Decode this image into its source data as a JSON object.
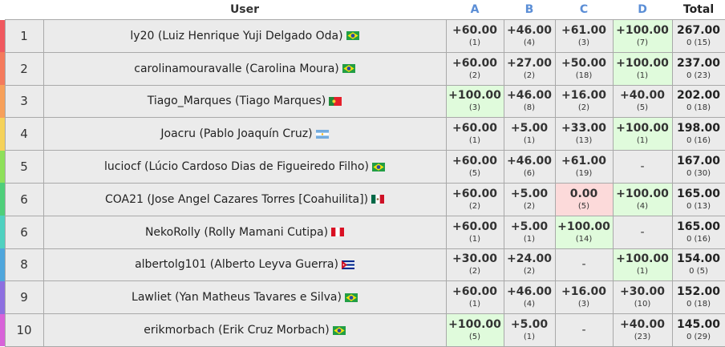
{
  "header": {
    "user": "User",
    "problems": [
      "A",
      "B",
      "C",
      "D"
    ],
    "total": "Total"
  },
  "colors": {
    "accepted_bg": "#e0fbdc",
    "wrong_bg": "#fcdada",
    "default_bg": "#ebebeb",
    "problem_header": "#5b8ed6"
  },
  "rows": [
    {
      "rank": "1",
      "user": "ly20 (Luiz Henrique Yuji Delgado Oda)",
      "flag": "brazil",
      "bar_color": "#f0595f",
      "cells": [
        {
          "pts": "+60.00",
          "sub": "(1)",
          "state": "normal"
        },
        {
          "pts": "+46.00",
          "sub": "(4)",
          "state": "normal"
        },
        {
          "pts": "+61.00",
          "sub": "(3)",
          "state": "normal"
        },
        {
          "pts": "+100.00",
          "sub": "(7)",
          "state": "ac"
        }
      ],
      "total": "267.00",
      "total_sub": "0 (15)"
    },
    {
      "rank": "2",
      "user": "carolinamouravalle (Carolina Moura)",
      "flag": "brazil",
      "bar_color": "#f47a5c",
      "cells": [
        {
          "pts": "+60.00",
          "sub": "(2)",
          "state": "normal"
        },
        {
          "pts": "+27.00",
          "sub": "(2)",
          "state": "normal"
        },
        {
          "pts": "+50.00",
          "sub": "(18)",
          "state": "normal"
        },
        {
          "pts": "+100.00",
          "sub": "(1)",
          "state": "ac"
        }
      ],
      "total": "237.00",
      "total_sub": "0 (23)"
    },
    {
      "rank": "3",
      "user": "Tiago_Marques (Tiago Marques)",
      "flag": "portugal",
      "bar_color": "#f7a05a",
      "cells": [
        {
          "pts": "+100.00",
          "sub": "(3)",
          "state": "ac"
        },
        {
          "pts": "+46.00",
          "sub": "(8)",
          "state": "normal"
        },
        {
          "pts": "+16.00",
          "sub": "(2)",
          "state": "normal"
        },
        {
          "pts": "+40.00",
          "sub": "(5)",
          "state": "normal"
        }
      ],
      "total": "202.00",
      "total_sub": "0 (18)"
    },
    {
      "rank": "4",
      "user": "Joacru (Pablo Joaquín Cruz)",
      "flag": "argentina",
      "bar_color": "#f5d25a",
      "cells": [
        {
          "pts": "+60.00",
          "sub": "(1)",
          "state": "normal"
        },
        {
          "pts": "+5.00",
          "sub": "(1)",
          "state": "normal"
        },
        {
          "pts": "+33.00",
          "sub": "(13)",
          "state": "normal"
        },
        {
          "pts": "+100.00",
          "sub": "(1)",
          "state": "ac"
        }
      ],
      "total": "198.00",
      "total_sub": "0 (16)"
    },
    {
      "rank": "5",
      "user": "luciocf (Lúcio Cardoso Dias de Figueiredo Filho)",
      "flag": "brazil",
      "bar_color": "#8ee05a",
      "cells": [
        {
          "pts": "+60.00",
          "sub": "(5)",
          "state": "normal"
        },
        {
          "pts": "+46.00",
          "sub": "(6)",
          "state": "normal"
        },
        {
          "pts": "+61.00",
          "sub": "(19)",
          "state": "normal"
        },
        {
          "pts": "-",
          "sub": "",
          "state": "dash"
        }
      ],
      "total": "167.00",
      "total_sub": "0 (30)"
    },
    {
      "rank": "6",
      "user": "COA21 (Jose Angel Cazares Torres [Coahuilita])",
      "flag": "mexico",
      "bar_color": "#4fcf7a",
      "cells": [
        {
          "pts": "+60.00",
          "sub": "(2)",
          "state": "normal"
        },
        {
          "pts": "+5.00",
          "sub": "(2)",
          "state": "normal"
        },
        {
          "pts": "0.00",
          "sub": "(5)",
          "state": "wa"
        },
        {
          "pts": "+100.00",
          "sub": "(4)",
          "state": "ac"
        }
      ],
      "total": "165.00",
      "total_sub": "0 (13)"
    },
    {
      "rank": "6",
      "user": "NekoRolly (Rolly Mamani Cutipa)",
      "flag": "peru",
      "bar_color": "#4fd1c0",
      "cells": [
        {
          "pts": "+60.00",
          "sub": "(1)",
          "state": "normal"
        },
        {
          "pts": "+5.00",
          "sub": "(1)",
          "state": "normal"
        },
        {
          "pts": "+100.00",
          "sub": "(14)",
          "state": "ac"
        },
        {
          "pts": "-",
          "sub": "",
          "state": "dash"
        }
      ],
      "total": "165.00",
      "total_sub": "0 (16)"
    },
    {
      "rank": "8",
      "user": "albertolg101 (Alberto Leyva Guerra)",
      "flag": "cuba",
      "bar_color": "#4fa6dc",
      "cells": [
        {
          "pts": "+30.00",
          "sub": "(2)",
          "state": "normal"
        },
        {
          "pts": "+24.00",
          "sub": "(2)",
          "state": "normal"
        },
        {
          "pts": "-",
          "sub": "",
          "state": "dash"
        },
        {
          "pts": "+100.00",
          "sub": "(1)",
          "state": "ac"
        }
      ],
      "total": "154.00",
      "total_sub": "0 (5)"
    },
    {
      "rank": "9",
      "user": "Lawliet (Yan Matheus Tavares e Silva)",
      "flag": "brazil",
      "bar_color": "#8d6fe0",
      "cells": [
        {
          "pts": "+60.00",
          "sub": "(1)",
          "state": "normal"
        },
        {
          "pts": "+46.00",
          "sub": "(4)",
          "state": "normal"
        },
        {
          "pts": "+16.00",
          "sub": "(3)",
          "state": "normal"
        },
        {
          "pts": "+30.00",
          "sub": "(10)",
          "state": "normal"
        }
      ],
      "total": "152.00",
      "total_sub": "0 (18)"
    },
    {
      "rank": "10",
      "user": "erikmorbach (Erik Cruz Morbach)",
      "flag": "brazil",
      "bar_color": "#d863d9",
      "cells": [
        {
          "pts": "+100.00",
          "sub": "(5)",
          "state": "ac"
        },
        {
          "pts": "+5.00",
          "sub": "(1)",
          "state": "normal"
        },
        {
          "pts": "-",
          "sub": "",
          "state": "dash"
        },
        {
          "pts": "+40.00",
          "sub": "(23)",
          "state": "normal"
        }
      ],
      "total": "145.00",
      "total_sub": "0 (29)"
    }
  ]
}
